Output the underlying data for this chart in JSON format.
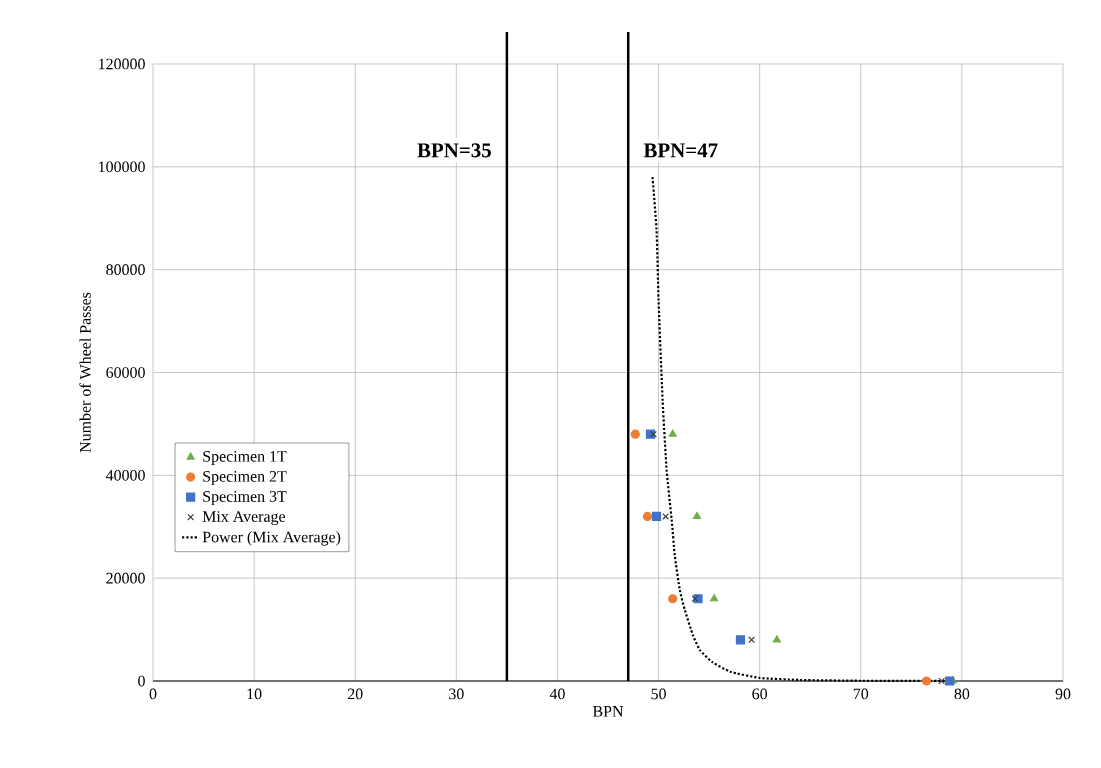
{
  "chart_data": {
    "type": "scatter",
    "xlabel": "BPN",
    "ylabel": "Number of Wheel Passes",
    "xlim": [
      0,
      90
    ],
    "xticks": [
      0,
      10,
      20,
      30,
      40,
      50,
      60,
      70,
      80,
      90
    ],
    "ylim": [
      0,
      120000
    ],
    "yticks": [
      0,
      20000,
      40000,
      60000,
      80000,
      100000,
      120000
    ],
    "grid": true,
    "legend": "bottom left",
    "series": [
      {
        "name": "Specimen 1T",
        "marker": "triangle",
        "color": "#70ad47",
        "x": [
          51.4,
          53.8,
          55.5,
          61.7,
          79.1
        ],
        "values": [
          48000,
          32000,
          16000,
          8000,
          0
        ]
      },
      {
        "name": "Specimen 2T",
        "marker": "circle",
        "color": "#ed7d31",
        "x": [
          47.7,
          48.9,
          51.4,
          76.5
        ],
        "values": [
          48000,
          32000,
          16000,
          0
        ]
      },
      {
        "name": "Specimen 3T",
        "marker": "square",
        "color": "#4472c4",
        "x": [
          49.2,
          49.8,
          53.9,
          58.1,
          78.8
        ],
        "values": [
          48000,
          32000,
          16000,
          8000,
          0
        ]
      },
      {
        "name": "Mix Average",
        "marker": "cross",
        "color": "#404040",
        "x": [
          49.5,
          50.7,
          53.6,
          59.2,
          78.0
        ],
        "values": [
          48000,
          32000,
          16000,
          8000,
          0
        ]
      },
      {
        "name": "Power (Mix Average)",
        "type": "line",
        "marker": "none",
        "line_style": "dotted",
        "color": "#000000",
        "x": [
          49.4,
          49.8,
          50.0,
          50.4,
          50.8,
          51.3,
          51.6,
          52.1,
          52.6,
          53.4,
          54.1,
          55.3,
          57.1,
          60.0,
          64.0,
          70.0,
          78.8
        ],
        "values": [
          98000,
          87800,
          74100,
          54600,
          41000,
          31300,
          24500,
          17700,
          13800,
          8900,
          6000,
          3700,
          1800,
          600,
          200,
          50,
          0
        ]
      }
    ],
    "ref_lines": [
      {
        "axis": "x",
        "value": 35,
        "label": "BPN=35",
        "color": "#000000"
      },
      {
        "axis": "x",
        "value": 47,
        "label": "BPN=47",
        "color": "#000000"
      }
    ]
  }
}
